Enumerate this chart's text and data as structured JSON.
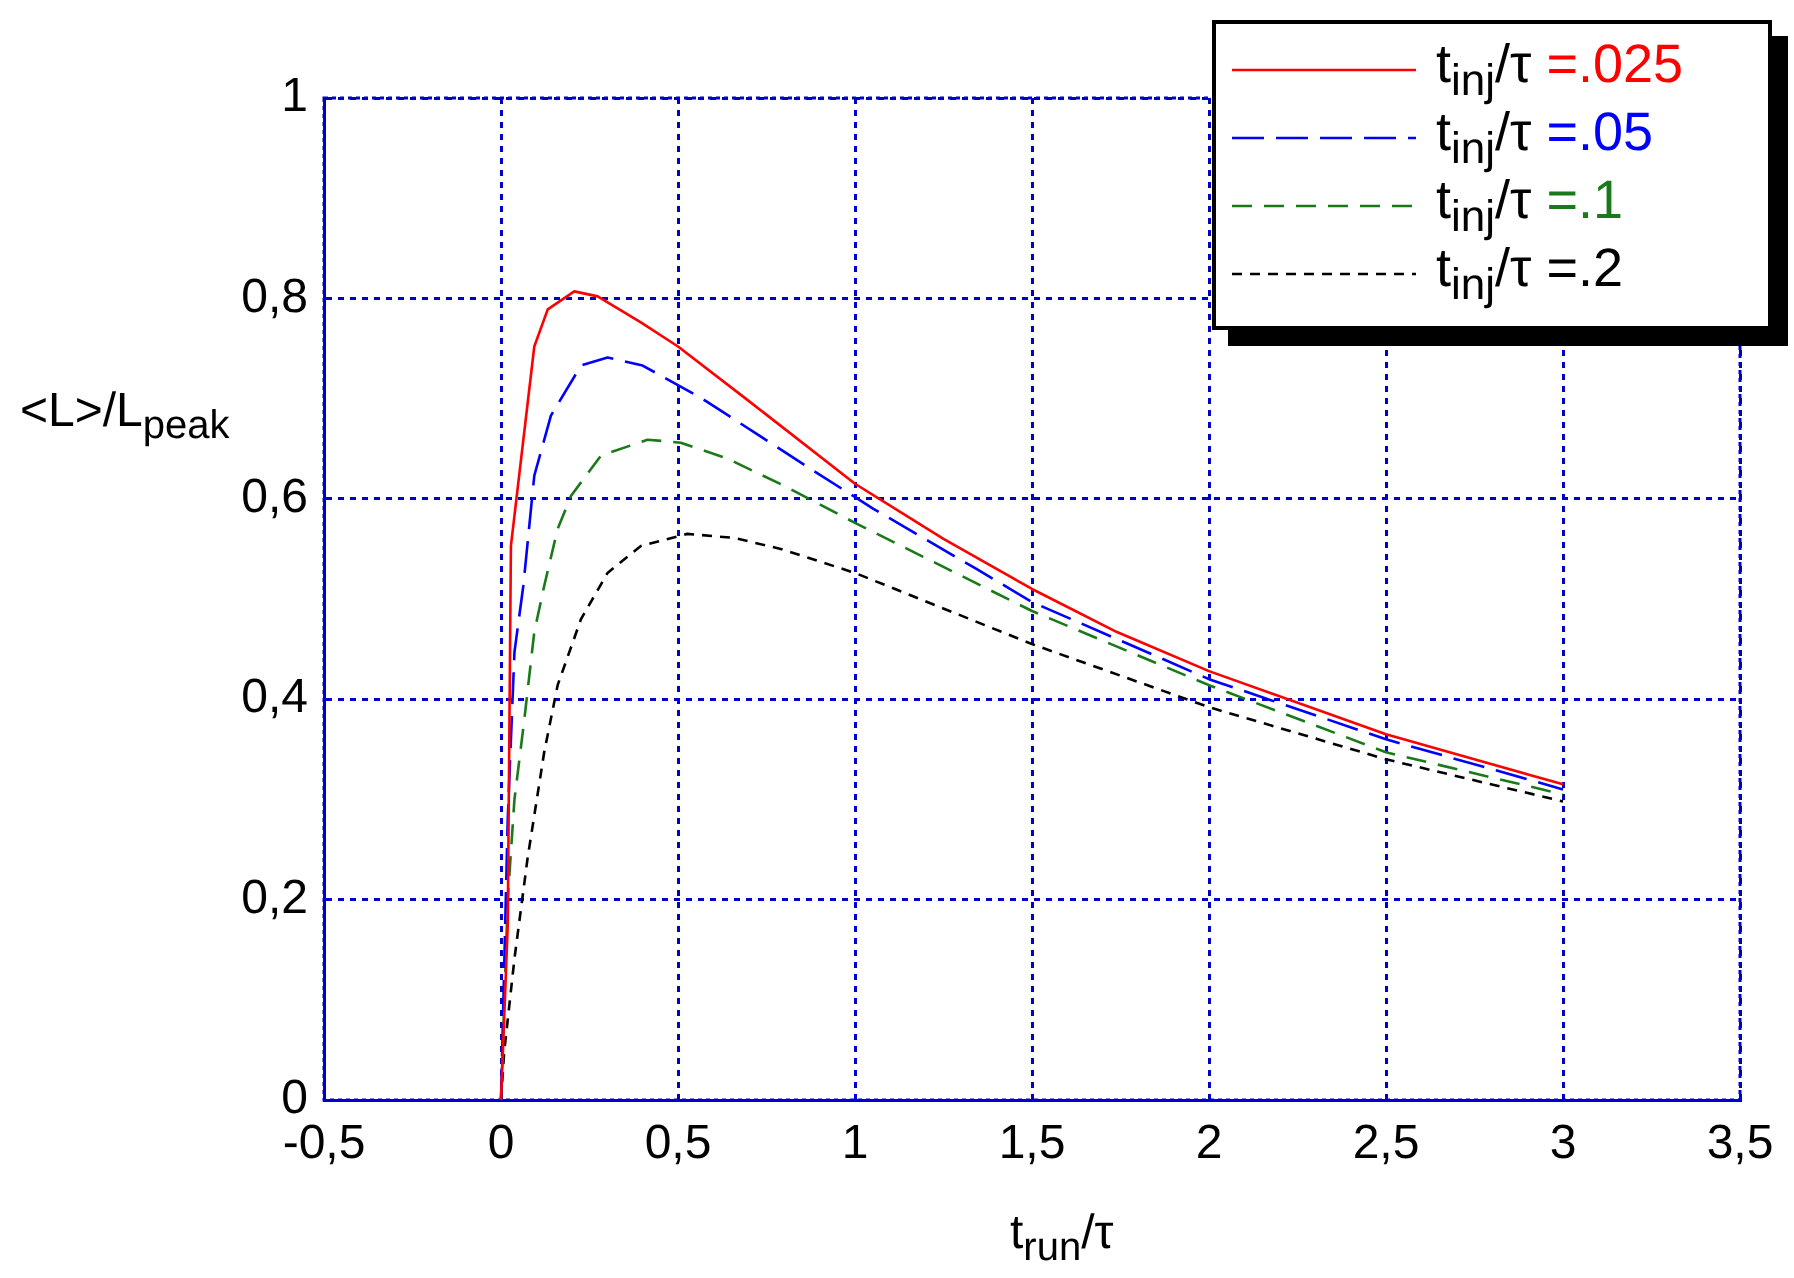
{
  "chart_data": {
    "type": "line",
    "xlabel": "t$_{run}$/τ",
    "ylabel": "<L>/L$_{peak}$",
    "xlim": [
      -0.5,
      3.5
    ],
    "xticks": [
      {
        "value": -0.5,
        "label": "-0,5"
      },
      0,
      {
        "value": 0.5,
        "label": "0,5"
      },
      1,
      {
        "value": 1.5,
        "label": "1,5"
      },
      2,
      {
        "value": 2.5,
        "label": "2,5"
      },
      3,
      {
        "value": 3.5,
        "label": "3,5"
      }
    ],
    "ylim": [
      0,
      1
    ],
    "yticks": [
      0,
      {
        "value": 0.2,
        "label": "0,2"
      },
      {
        "value": 0.4,
        "label": "0,4"
      },
      {
        "value": 0.6,
        "label": "0,6"
      },
      {
        "value": 0.8,
        "label": "0,8"
      },
      1
    ],
    "grid": true,
    "legend": "top right",
    "marker": "none",
    "series": [
      {
        "name": "t$_{inj}$/τ =.025",
        "color": "#ff0000",
        "line_style": "solid",
        "x": [
          0,
          0.019,
          0.028,
          0.094,
          0.132,
          0.207,
          0.273,
          0.395,
          0.5,
          0.695,
          1.0,
          1.25,
          1.5,
          1.74,
          2.0,
          2.5,
          3.0
        ],
        "values": [
          0,
          0.174,
          0.553,
          0.752,
          0.789,
          0.807,
          0.802,
          0.776,
          0.752,
          0.699,
          0.615,
          0.56,
          0.51,
          0.467,
          0.428,
          0.365,
          0.315
        ]
      },
      {
        "name": "t$_{inj}$/τ =.05",
        "color": "#0000ff",
        "line_style": "dashed",
        "x": [
          0,
          0.019,
          0.038,
          0.063,
          0.094,
          0.141,
          0.226,
          0.301,
          0.4,
          0.564,
          0.874,
          1.052,
          1.343,
          1.5,
          2.0,
          2.5,
          3.0
        ],
        "values": [
          0,
          0.28,
          0.447,
          0.513,
          0.623,
          0.683,
          0.733,
          0.741,
          0.733,
          0.701,
          0.63,
          0.59,
          0.53,
          0.497,
          0.42,
          0.36,
          0.31
        ]
      },
      {
        "name": "t$_{inj}$/τ =.1",
        "color": "#1a7a1a",
        "line_style": "dashed",
        "x": [
          0,
          0.019,
          0.038,
          0.066,
          0.094,
          0.122,
          0.16,
          0.198,
          0.282,
          0.414,
          0.508,
          0.64,
          0.8,
          1.0,
          1.5,
          2.0,
          2.5,
          3.0
        ],
        "values": [
          0,
          0.2,
          0.3,
          0.38,
          0.467,
          0.513,
          0.57,
          0.603,
          0.643,
          0.659,
          0.656,
          0.64,
          0.613,
          0.576,
          0.488,
          0.414,
          0.347,
          0.305
        ]
      },
      {
        "name": "t$_{inj}$/τ =.2",
        "color": "#000000",
        "line_style": "dashed",
        "x": [
          0,
          0.009,
          0.038,
          0.075,
          0.122,
          0.16,
          0.226,
          0.301,
          0.395,
          0.526,
          0.658,
          0.79,
          1.0,
          1.5,
          2.0,
          2.5,
          3.0
        ],
        "values": [
          0,
          0.048,
          0.141,
          0.241,
          0.347,
          0.414,
          0.48,
          0.526,
          0.553,
          0.565,
          0.561,
          0.55,
          0.526,
          0.455,
          0.392,
          0.34,
          0.298
        ]
      }
    ]
  }
}
